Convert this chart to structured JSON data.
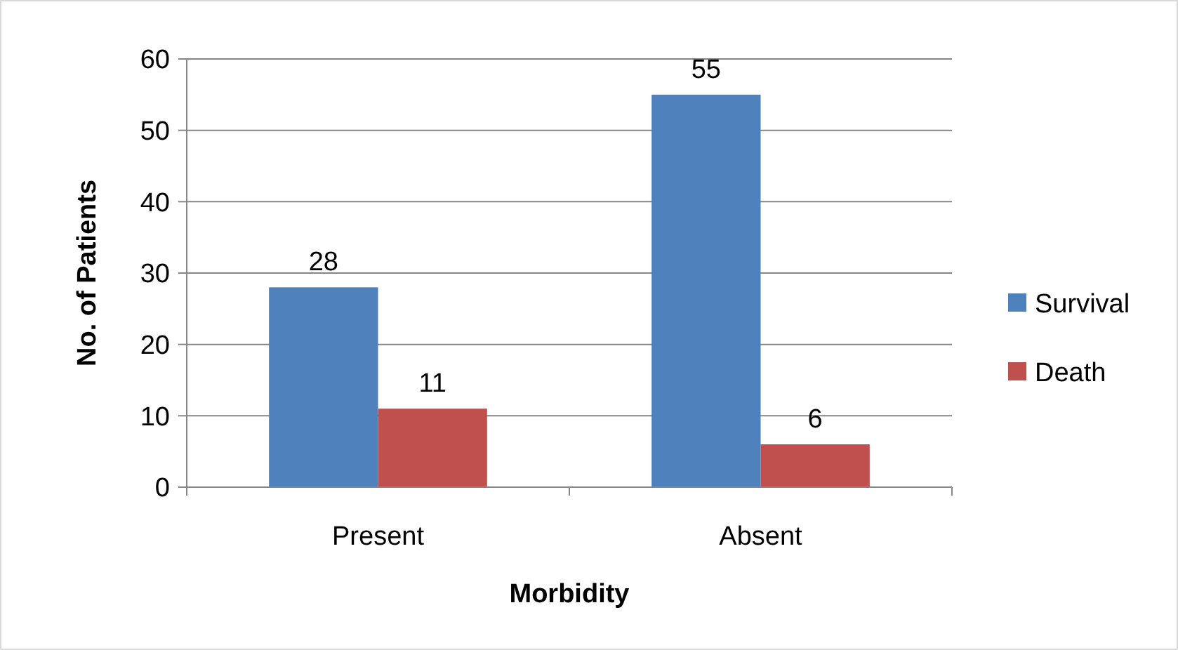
{
  "chart_data": {
    "type": "bar",
    "xlabel": "Morbidity",
    "ylabel": "No. of Patients",
    "categories": [
      "Present",
      "Absent"
    ],
    "series": [
      {
        "name": "Survival",
        "color": "#4f81bd",
        "values": [
          28,
          55
        ]
      },
      {
        "name": "Death",
        "color": "#c0504d",
        "values": [
          11,
          6
        ]
      }
    ],
    "ylim": [
      0,
      60
    ],
    "yticks": [
      0,
      10,
      20,
      30,
      40,
      50,
      60
    ],
    "grid": "y",
    "legend": "right",
    "data_labels": true
  }
}
